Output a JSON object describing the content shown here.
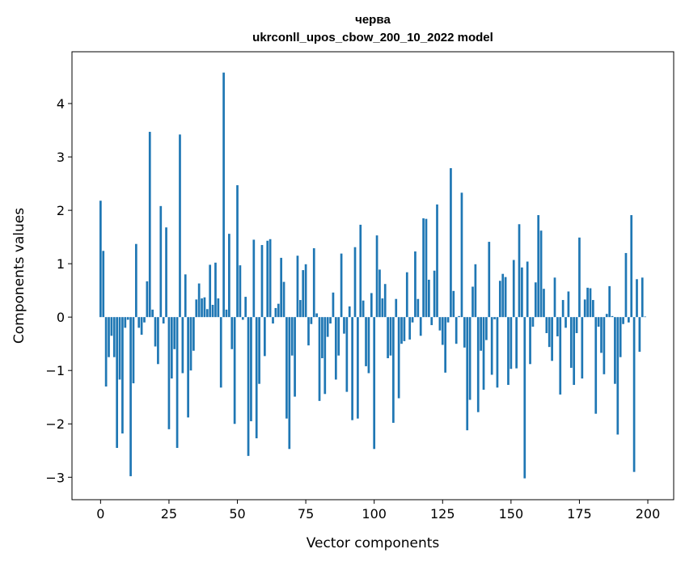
{
  "chart_data": {
    "type": "bar",
    "title": "червa",
    "subtitle": "ukrconll_upos_cbow_200_10_2022 model",
    "xlabel": "Vector components",
    "ylabel": "Components values",
    "xlim": [
      -10.45,
      209.45
    ],
    "ylim": [
      -3.42,
      4.97
    ],
    "xticks": [
      0,
      25,
      50,
      75,
      100,
      125,
      150,
      175,
      200
    ],
    "yticks": [
      -3,
      -2,
      -1,
      0,
      1,
      2,
      3,
      4
    ],
    "grid": false,
    "bar_color": "#1f77b4",
    "values": [
      2.18,
      1.24,
      -1.3,
      -0.75,
      -0.35,
      -0.75,
      -2.45,
      -1.17,
      -2.18,
      -0.2,
      -0.05,
      -2.98,
      -1.24,
      1.37,
      -0.2,
      -0.33,
      -0.1,
      0.67,
      3.47,
      0.14,
      -0.55,
      -0.88,
      2.08,
      -0.12,
      1.68,
      -2.1,
      -1.15,
      -0.6,
      -2.45,
      3.42,
      -1.05,
      0.8,
      -1.88,
      -1.0,
      -0.63,
      0.33,
      0.63,
      0.35,
      0.37,
      0.15,
      0.98,
      0.23,
      1.02,
      0.35,
      -1.32,
      4.58,
      0.14,
      1.56,
      -0.6,
      -2.0,
      2.47,
      0.97,
      -0.05,
      0.38,
      -2.6,
      -1.95,
      1.45,
      -2.27,
      -1.25,
      1.35,
      -0.73,
      1.43,
      1.46,
      -0.12,
      0.17,
      0.25,
      1.11,
      0.66,
      -1.9,
      -2.47,
      -0.72,
      -1.49,
      1.15,
      0.32,
      0.88,
      0.99,
      -0.53,
      -0.13,
      1.29,
      0.07,
      -1.57,
      -0.77,
      -1.44,
      -0.37,
      -0.12,
      0.46,
      -1.17,
      -0.72,
      1.19,
      -0.31,
      -1.4,
      0.2,
      -1.93,
      1.31,
      -1.9,
      1.73,
      0.31,
      -0.92,
      -1.05,
      0.45,
      -2.47,
      1.53,
      0.89,
      0.35,
      0.62,
      -0.77,
      -0.72,
      -1.98,
      0.34,
      -1.52,
      -0.5,
      -0.45,
      0.84,
      -0.42,
      -0.1,
      1.23,
      0.34,
      -0.35,
      1.85,
      1.84,
      0.7,
      -0.15,
      0.87,
      2.11,
      -0.25,
      -0.52,
      -1.04,
      -0.1,
      2.79,
      0.49,
      -0.5,
      0.02,
      2.33,
      -0.57,
      -2.12,
      -1.55,
      0.57,
      0.99,
      -1.78,
      -0.63,
      -1.36,
      -0.43,
      1.41,
      -1.08,
      -0.04,
      -1.32,
      0.68,
      0.81,
      0.75,
      -1.27,
      -0.97,
      1.07,
      -0.96,
      1.74,
      0.93,
      -3.02,
      1.04,
      -0.88,
      -0.18,
      0.65,
      1.91,
      1.62,
      0.53,
      -0.3,
      -0.56,
      -0.82,
      0.74,
      -0.36,
      -1.45,
      0.32,
      -0.2,
      0.48,
      -0.95,
      -1.27,
      -0.3,
      1.49,
      -1.15,
      0.33,
      0.55,
      0.54,
      0.32,
      -1.81,
      -0.18,
      -0.67,
      -1.07,
      0.06,
      0.58,
      0.02,
      -1.25,
      -2.2,
      -0.75,
      -0.13,
      1.2,
      -0.1,
      1.91,
      -2.9,
      0.71,
      -0.65,
      0.74,
      0.01
    ]
  }
}
